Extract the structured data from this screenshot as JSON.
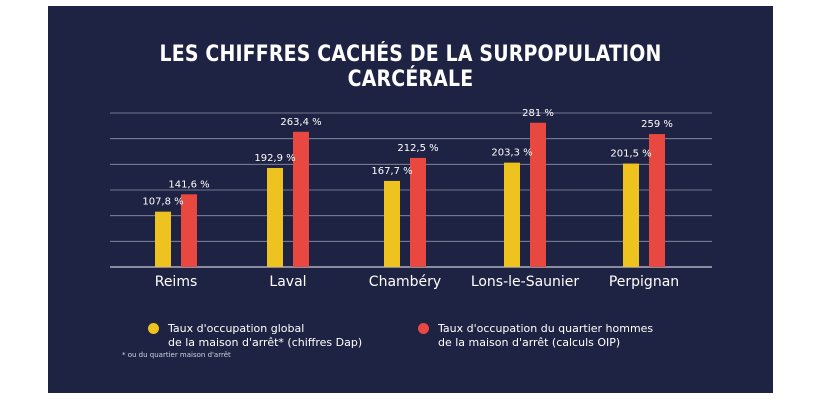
{
  "title": "LES CHIFFRES CACHÉS DE LA SURPOPULATION CARCÉRALE",
  "footnote": "* ou du quartier maison d'arrêt",
  "legend": {
    "series_a": [
      "Taux d'occupation global",
      "de la maison d'arrêt* (chiffres Dap)"
    ],
    "series_b": [
      "Taux d'occupation du quartier hommes",
      "de la maison d'arrêt (calculs OIP)"
    ]
  },
  "colors": {
    "background": "#1e2343",
    "series_a": "#eec31f",
    "series_b": "#e94840",
    "grid": "#8e92a8"
  },
  "chart_data": {
    "type": "bar",
    "categories": [
      "Reims",
      "Laval",
      "Chambéry",
      "Lons-le-Saunier",
      "Perpignan"
    ],
    "series": [
      {
        "values": [
          107.8,
          192.9,
          167.7,
          203.3,
          201.5
        ],
        "labels": [
          "107,8 %",
          "192,9 %",
          "167,7 %",
          "203,3 %",
          "201,5 %"
        ]
      },
      {
        "values": [
          141.6,
          263.4,
          212.5,
          281,
          259
        ],
        "labels": [
          "141,6 %",
          "263,4 %",
          "212,5 %",
          "281 %",
          "259  %"
        ]
      }
    ],
    "ylim": [
      0,
      300
    ],
    "grid": true,
    "xlabel": "",
    "ylabel": ""
  }
}
